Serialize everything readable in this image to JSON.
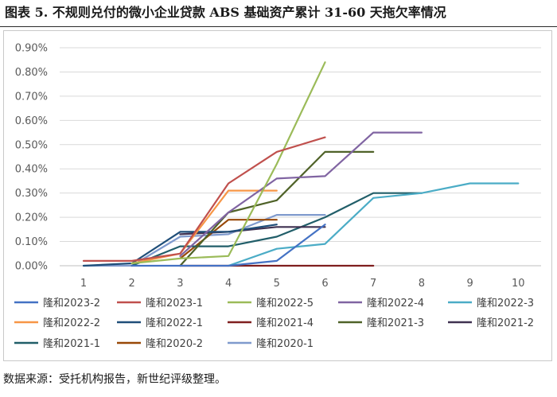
{
  "title": "图表 5.  不规则兑付的微小企业贷款 ABS 基础资产累计 31-60 天拖欠率情况",
  "source": "数据来源：受托机构报告，新世纪评级整理。",
  "chart_data": {
    "type": "line",
    "title": "",
    "xlabel": "",
    "ylabel": "",
    "x_ticks": [
      "1",
      "2",
      "3",
      "4",
      "5",
      "6",
      "7",
      "8",
      "9",
      "10"
    ],
    "y_ticks": [
      "0.00%",
      "0.10%",
      "0.20%",
      "0.30%",
      "0.40%",
      "0.50%",
      "0.60%",
      "0.70%",
      "0.80%",
      "0.90%"
    ],
    "ylim": [
      0,
      0.9
    ],
    "xlim": [
      1,
      10
    ],
    "y_unit": "%",
    "grid": "horizontal",
    "legend_placement": "bottom",
    "series": [
      {
        "name": "隆和2023-2",
        "color": "#4472C4",
        "x": [
          2,
          3,
          4,
          5,
          6
        ],
        "y": [
          0.0,
          0.0,
          0.0,
          0.02,
          0.17
        ]
      },
      {
        "name": "隆和2023-1",
        "color": "#C0504D",
        "x": [
          1,
          2,
          3,
          4,
          5,
          6
        ],
        "y": [
          0.02,
          0.02,
          0.05,
          0.34,
          0.47,
          0.53
        ]
      },
      {
        "name": "隆和2022-5",
        "color": "#9BBB59",
        "x": [
          2,
          3,
          4,
          5,
          6
        ],
        "y": [
          0.01,
          0.03,
          0.04,
          0.42,
          0.84
        ]
      },
      {
        "name": "隆和2022-4",
        "color": "#8064A2",
        "x": [
          3,
          4,
          5,
          6,
          7,
          8
        ],
        "y": [
          0.04,
          0.22,
          0.36,
          0.37,
          0.55,
          0.55
        ]
      },
      {
        "name": "隆和2022-3",
        "color": "#4BACC6",
        "x": [
          4,
          5,
          6,
          7,
          8,
          9,
          10
        ],
        "y": [
          0.0,
          0.07,
          0.09,
          0.28,
          0.3,
          0.34,
          0.34
        ]
      },
      {
        "name": "隆和2022-2",
        "color": "#F79646",
        "x": [
          2,
          3,
          4,
          5
        ],
        "y": [
          0.01,
          0.05,
          0.31,
          0.31
        ]
      },
      {
        "name": "隆和2022-1",
        "color": "#1F4E79",
        "x": [
          1,
          2,
          3,
          4,
          5
        ],
        "y": [
          0.0,
          0.01,
          0.14,
          0.14,
          0.17
        ]
      },
      {
        "name": "隆和2021-4",
        "color": "#7F1F1F",
        "x": [
          3,
          4,
          5,
          6,
          7
        ],
        "y": [
          0.0,
          0.0,
          0.0,
          0.0,
          0.0
        ]
      },
      {
        "name": "隆和2021-3",
        "color": "#4F6228",
        "x": [
          3,
          4,
          5,
          6,
          7
        ],
        "y": [
          0.0,
          0.22,
          0.27,
          0.47,
          0.47
        ]
      },
      {
        "name": "隆和2021-2",
        "color": "#3F3151",
        "x": [
          3,
          4,
          5,
          6
        ],
        "y": [
          0.13,
          0.14,
          0.16,
          0.16
        ]
      },
      {
        "name": "隆和2021-1",
        "color": "#215E69",
        "x": [
          2,
          3,
          4,
          5,
          6,
          7,
          8
        ],
        "y": [
          0.0,
          0.08,
          0.08,
          0.12,
          0.2,
          0.3,
          0.3
        ]
      },
      {
        "name": "隆和2020-2",
        "color": "#984807",
        "x": [
          3,
          4,
          5
        ],
        "y": [
          0.03,
          0.19,
          0.19
        ]
      },
      {
        "name": "隆和2020-1",
        "color": "#7F9ACD",
        "x": [
          1,
          2,
          3,
          4,
          5,
          6
        ],
        "y": [
          0.0,
          0.0,
          0.12,
          0.13,
          0.21,
          0.21
        ]
      }
    ]
  }
}
